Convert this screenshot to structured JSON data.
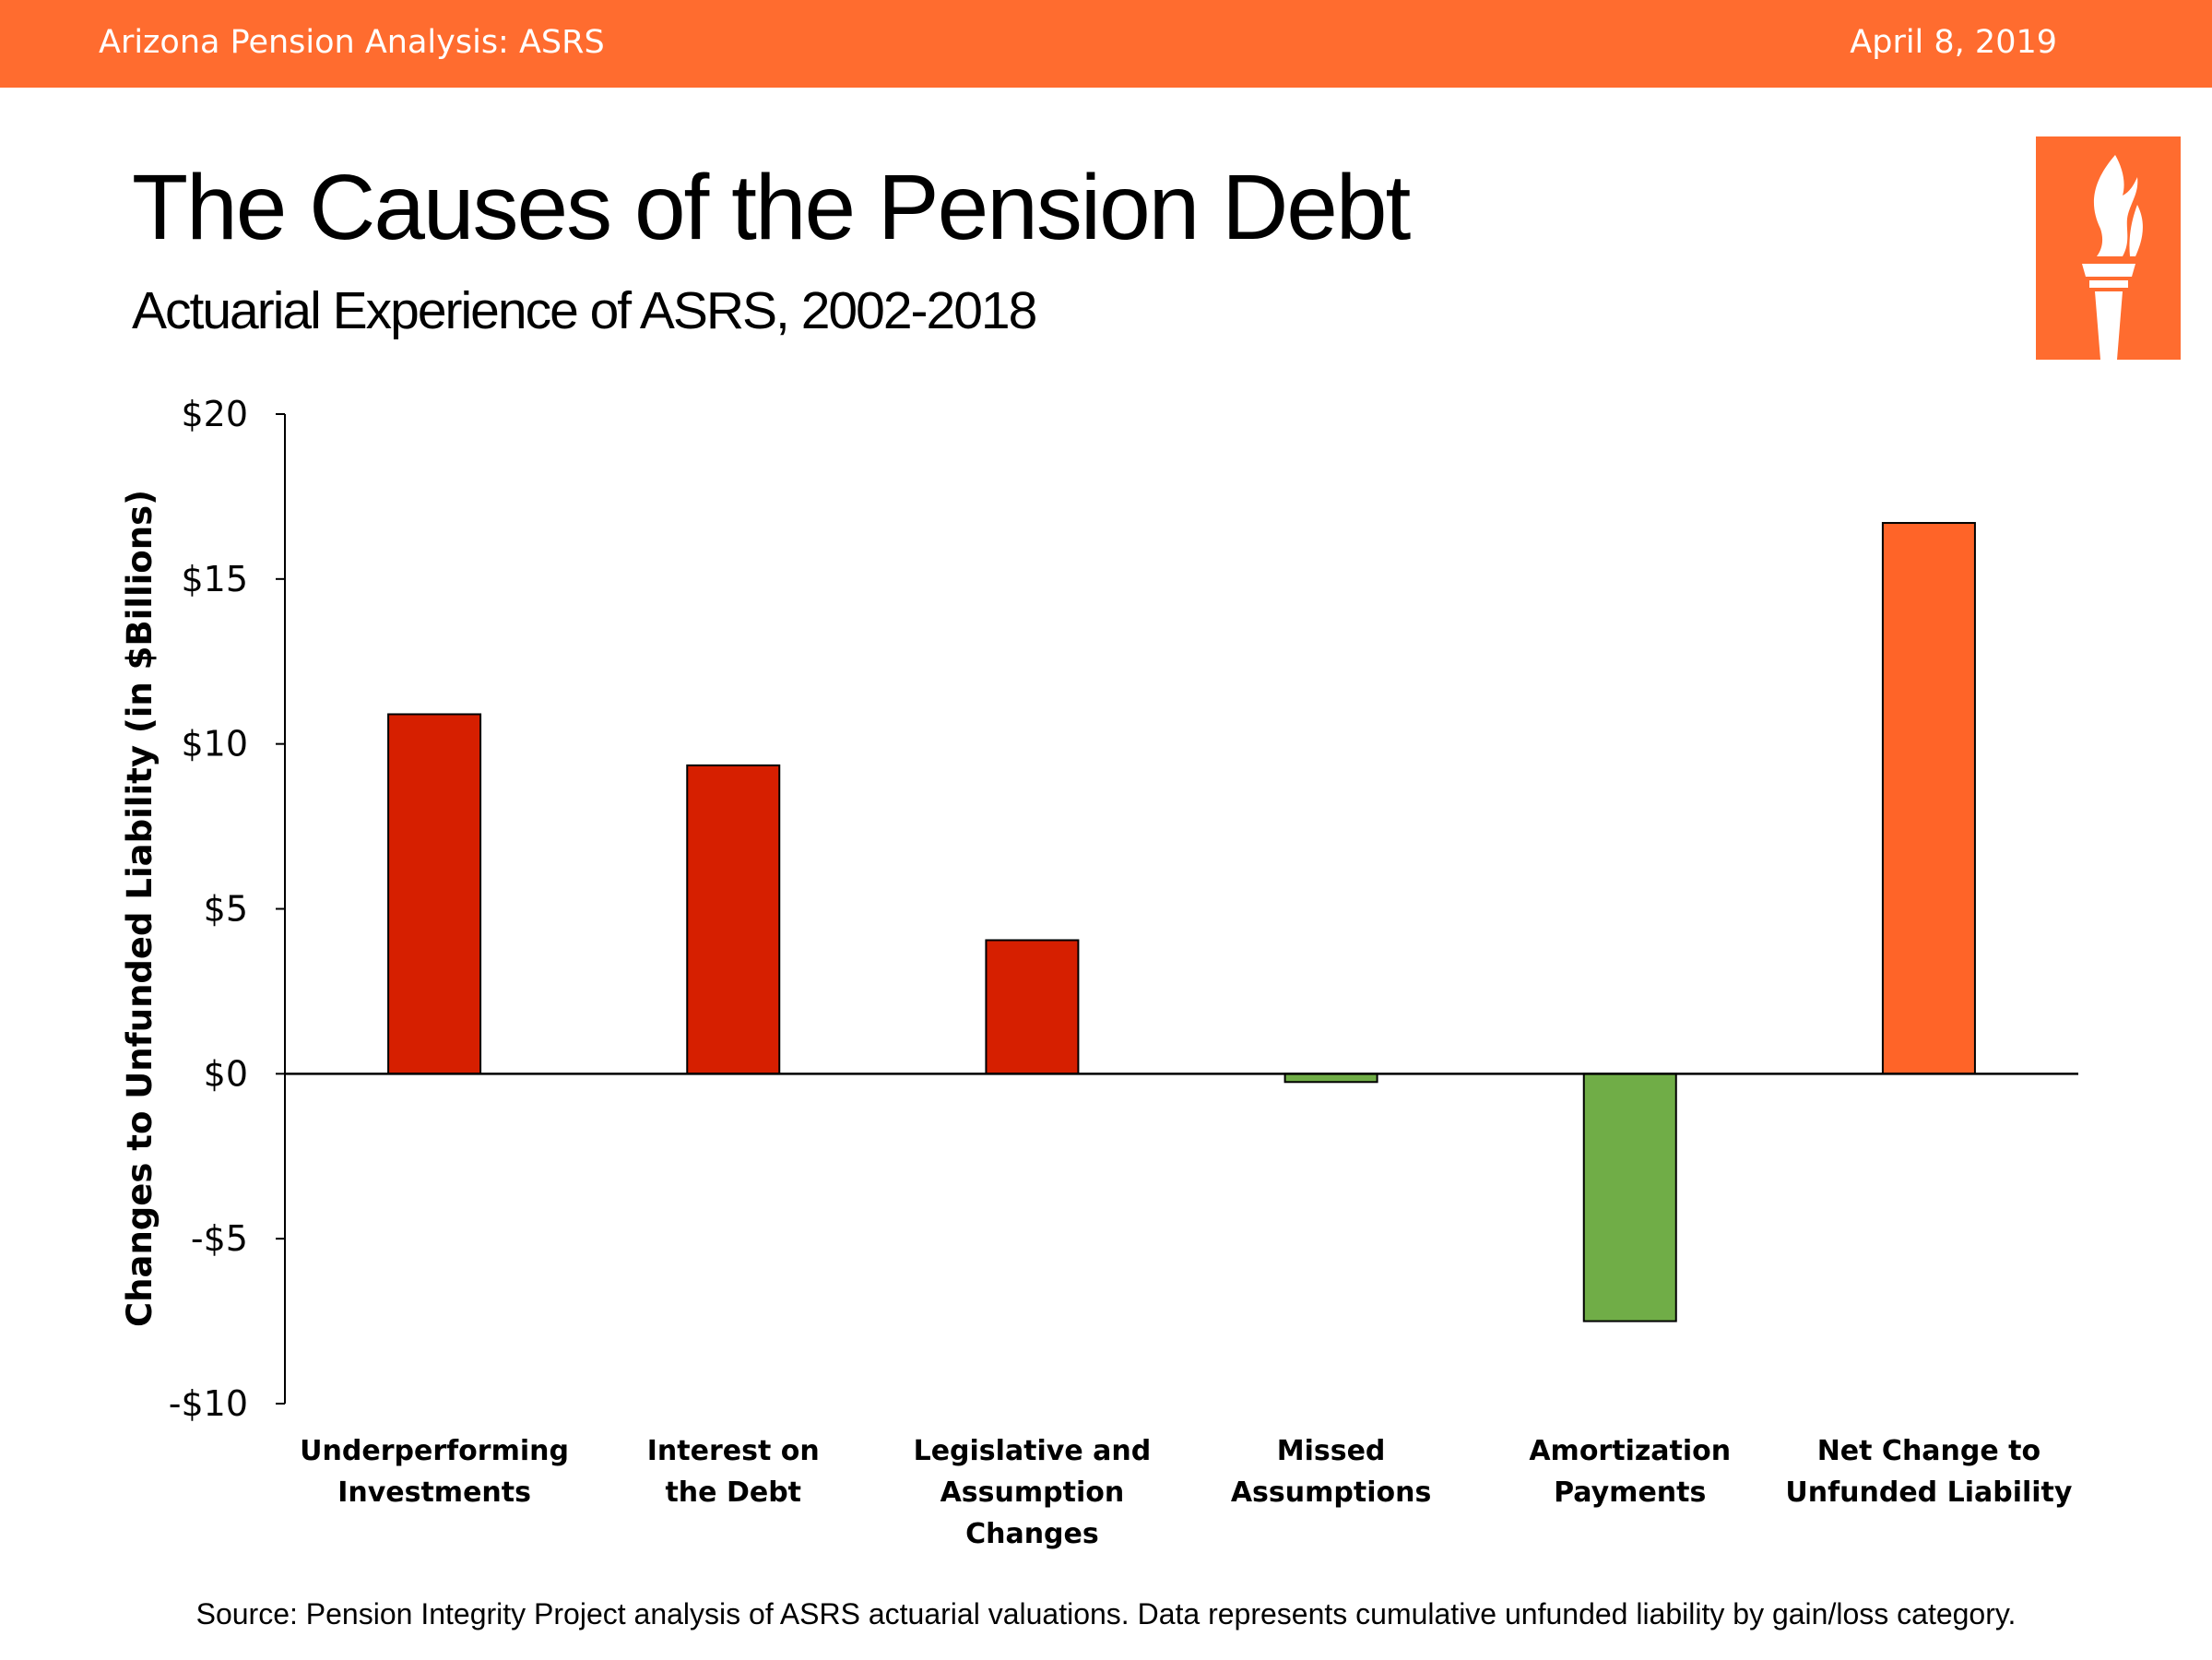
{
  "header": {
    "left_title": "Arizona Pension Analysis: ASRS",
    "date": "April 8, 2019",
    "background_color": "#FF6C2F"
  },
  "logo": {
    "icon": "torch-icon",
    "background_color": "#FF6C2F"
  },
  "chart_data": {
    "type": "bar",
    "title": "The Causes of the Pension Debt",
    "subtitle": "Actuarial Experience of ASRS, 2002-2018",
    "ylabel": "Changes to Unfunded Liability (in $Billions)",
    "xlabel": "",
    "ylim": [
      -10,
      20
    ],
    "yticks": [
      20,
      15,
      10,
      5,
      0,
      -5,
      -10
    ],
    "ytick_labels": [
      "$20",
      "$15",
      "$10",
      "$5",
      "$0",
      "-$5",
      "-$10"
    ],
    "categories": [
      [
        "Underperforming",
        "Investments"
      ],
      [
        "Interest on",
        "the Debt"
      ],
      [
        "Legislative and",
        "Assumption",
        "Changes"
      ],
      [
        "Missed",
        "Assumptions"
      ],
      [
        "Amortization",
        "Payments"
      ],
      [
        "Net Change to",
        "Unfunded Liability"
      ]
    ],
    "values": [
      10.9,
      9.35,
      4.05,
      -0.25,
      -7.5,
      16.7
    ],
    "colors": [
      "#D61F00",
      "#D61F00",
      "#D61F00",
      "#70AD47",
      "#70AD47",
      "#FF6428"
    ],
    "grid": false,
    "legend": "none"
  },
  "source": "Source: Pension Integrity Project analysis of ASRS actuarial valuations. Data represents cumulative unfunded liability by gain/loss category."
}
